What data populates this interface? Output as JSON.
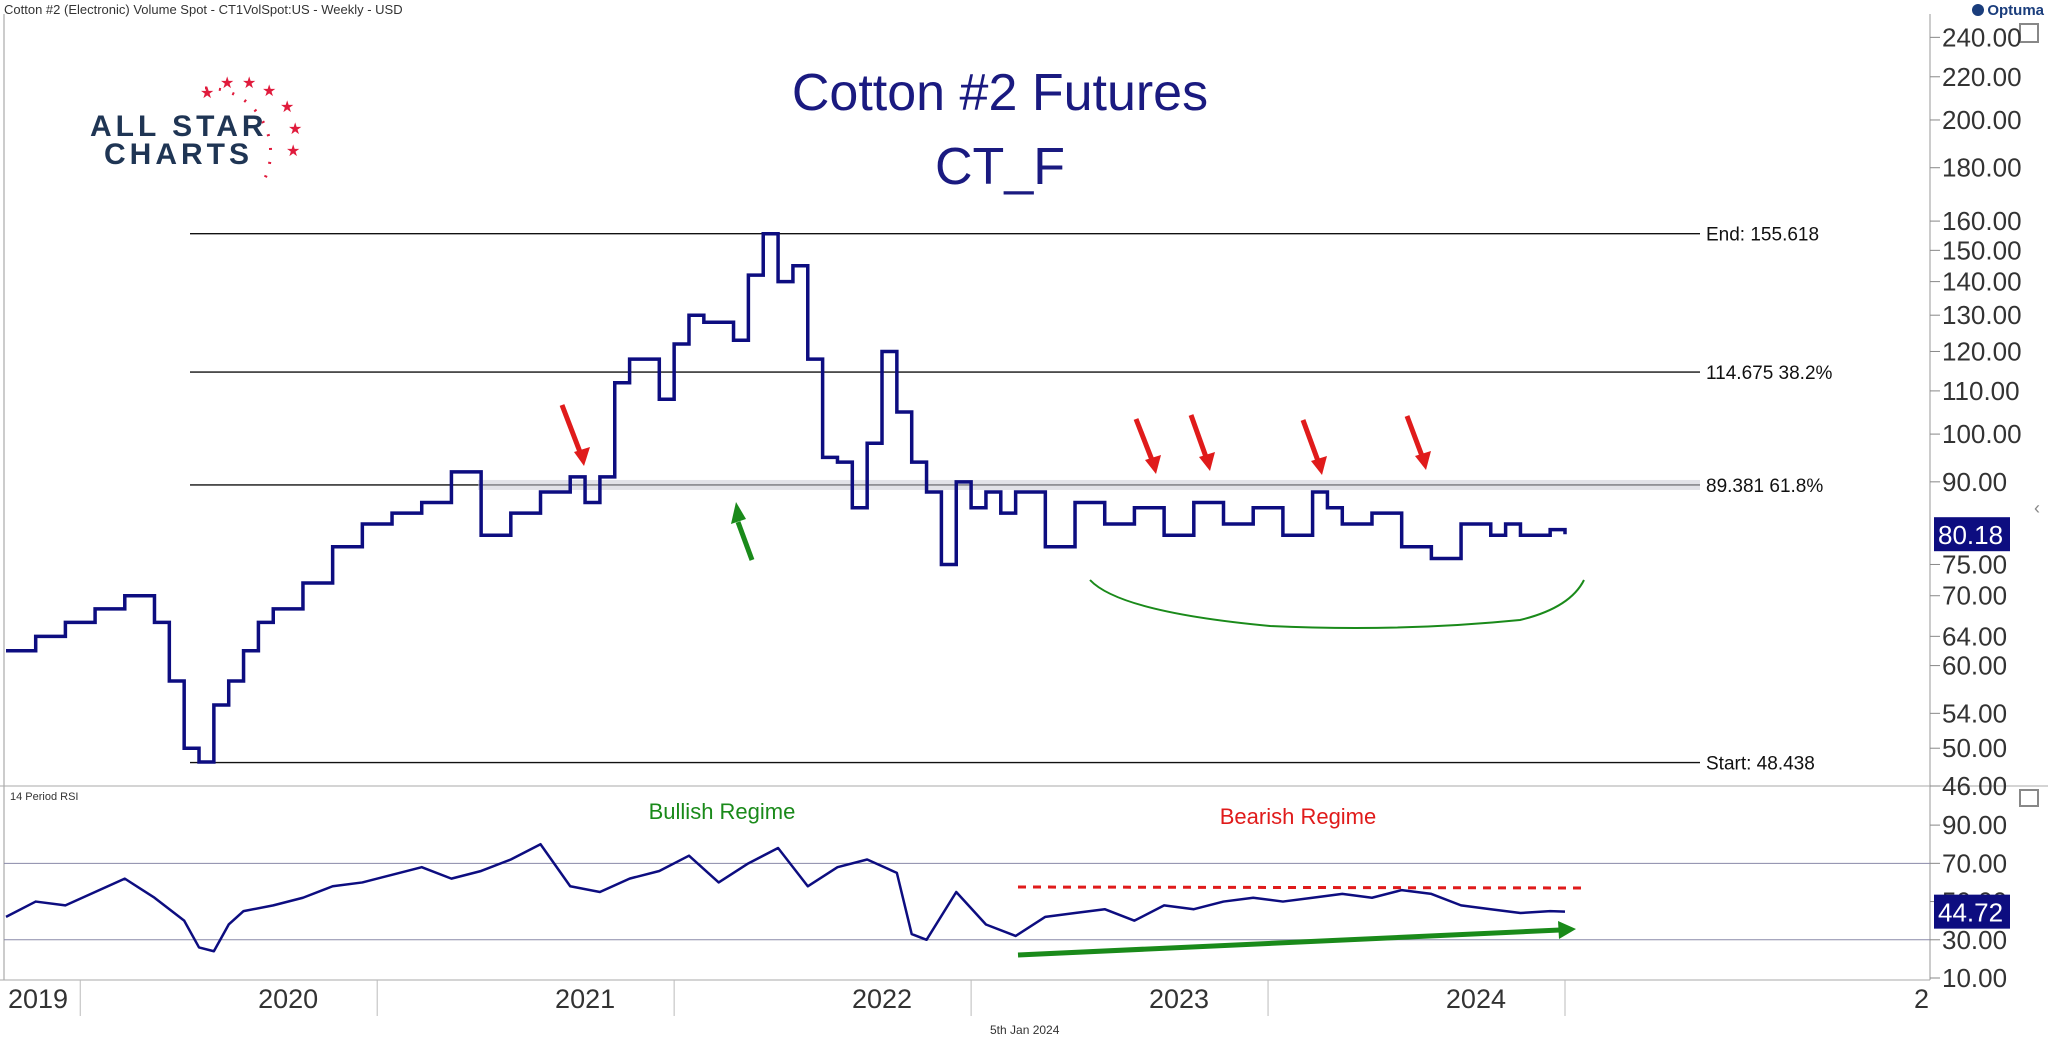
{
  "header": {
    "title": "Cotton #2 (Electronic) Volume Spot - CT1VolSpot:US - Weekly - USD",
    "brand": "Optuma",
    "footer_date": "5th Jan 2024"
  },
  "logo": {
    "line1": "ALL STAR",
    "line2": "CHARTS"
  },
  "colors": {
    "price": "#0d0d80",
    "bullish": "#1a8a1a",
    "bearish": "#e01b1b",
    "badge": "#0d0d80"
  },
  "chart_data": [
    {
      "type": "line",
      "title": "Cotton #2 Futures",
      "subtitle": "CT_F",
      "yscale": "log",
      "ylim": [
        46,
        245
      ],
      "y_ticks": [
        "240.00",
        "220.00",
        "200.00",
        "180.00",
        "160.00",
        "150.00",
        "140.00",
        "130.00",
        "120.00",
        "110.00",
        "100.00",
        "90.00",
        "75.00",
        "70.00",
        "64.00",
        "60.00",
        "54.00",
        "50.00",
        "46.00"
      ],
      "x_labels": [
        "2019",
        "2020",
        "2021",
        "2022",
        "2023",
        "2024",
        "2"
      ],
      "last_value": "80.18",
      "fib_levels": [
        {
          "label": "End:",
          "value": "155.618",
          "pct": ""
        },
        {
          "label": "",
          "value": "114.675",
          "pct": "38.2%"
        },
        {
          "label": "",
          "value": "89.381",
          "pct": "61.8%"
        },
        {
          "label": "Start:",
          "value": "48.438",
          "pct": ""
        }
      ],
      "series": [
        {
          "x": [
            2019.0,
            2019.1,
            2019.2,
            2019.3,
            2019.4,
            2019.5,
            2019.55,
            2019.6,
            2019.65,
            2019.7,
            2019.75,
            2019.8,
            2019.85,
            2019.9,
            2020.0,
            2020.1,
            2020.2,
            2020.3,
            2020.4,
            2020.5,
            2020.6,
            2020.7,
            2020.8,
            2020.9,
            2020.95,
            2021.0,
            2021.05,
            2021.1,
            2021.2,
            2021.25,
            2021.3,
            2021.35,
            2021.45,
            2021.5,
            2021.55,
            2021.6,
            2021.65,
            2021.7,
            2021.75,
            2021.8,
            2021.85,
            2021.9,
            2021.95,
            2022.0,
            2022.05,
            2022.1,
            2022.15,
            2022.2,
            2022.25,
            2022.3,
            2022.35,
            2022.4,
            2022.5,
            2022.6,
            2022.7,
            2022.8,
            2022.9,
            2023.0,
            2023.1,
            2023.2,
            2023.3,
            2023.4,
            2023.45,
            2023.5,
            2023.6,
            2023.7,
            2023.8,
            2023.9,
            2024.0,
            2024.05,
            2024.1,
            2024.2,
            2024.25
          ],
          "values": [
            62,
            64,
            66,
            68,
            70,
            66,
            58,
            50,
            48.5,
            55,
            58,
            62,
            66,
            68,
            72,
            78,
            82,
            84,
            86,
            92,
            80,
            84,
            88,
            91,
            86,
            91,
            112,
            118,
            108,
            122,
            130,
            128,
            123,
            142,
            155.6,
            140,
            145,
            118,
            95,
            94,
            85,
            98,
            120,
            105,
            94,
            88,
            75,
            90,
            85,
            88,
            84,
            88,
            78,
            86,
            82,
            85,
            80,
            86,
            82,
            85,
            80,
            88,
            85,
            82,
            84,
            78,
            76,
            82,
            80,
            82,
            80,
            81,
            80.18
          ]
        }
      ]
    },
    {
      "type": "line",
      "title": "14 Period RSI",
      "ylim": [
        10,
        100
      ],
      "y_ticks": [
        "90.00",
        "70.00",
        "50.00",
        "30.00",
        "10.00"
      ],
      "guide_lines": [
        70,
        30
      ],
      "annotations": [
        "Bullish Regime",
        "Bearish Regime"
      ],
      "last_value": "44.72",
      "series": [
        {
          "x": [
            2019.0,
            2019.1,
            2019.2,
            2019.3,
            2019.4,
            2019.5,
            2019.6,
            2019.65,
            2019.7,
            2019.75,
            2019.8,
            2019.9,
            2020.0,
            2020.1,
            2020.2,
            2020.3,
            2020.4,
            2020.5,
            2020.6,
            2020.7,
            2020.8,
            2020.9,
            2021.0,
            2021.1,
            2021.2,
            2021.3,
            2021.4,
            2021.5,
            2021.6,
            2021.7,
            2021.8,
            2021.9,
            2022.0,
            2022.05,
            2022.1,
            2022.2,
            2022.3,
            2022.4,
            2022.5,
            2022.6,
            2022.7,
            2022.8,
            2022.9,
            2023.0,
            2023.1,
            2023.2,
            2023.3,
            2023.4,
            2023.5,
            2023.6,
            2023.7,
            2023.8,
            2023.9,
            2024.0,
            2024.1,
            2024.2,
            2024.25
          ],
          "values": [
            42,
            50,
            48,
            55,
            62,
            52,
            40,
            26,
            24,
            38,
            45,
            48,
            52,
            58,
            60,
            64,
            68,
            62,
            66,
            72,
            80,
            58,
            55,
            62,
            66,
            74,
            60,
            70,
            78,
            58,
            68,
            72,
            65,
            33,
            30,
            55,
            38,
            32,
            42,
            44,
            46,
            40,
            48,
            46,
            50,
            52,
            50,
            52,
            54,
            52,
            56,
            54,
            48,
            46,
            44,
            45,
            44.72
          ]
        }
      ]
    }
  ]
}
